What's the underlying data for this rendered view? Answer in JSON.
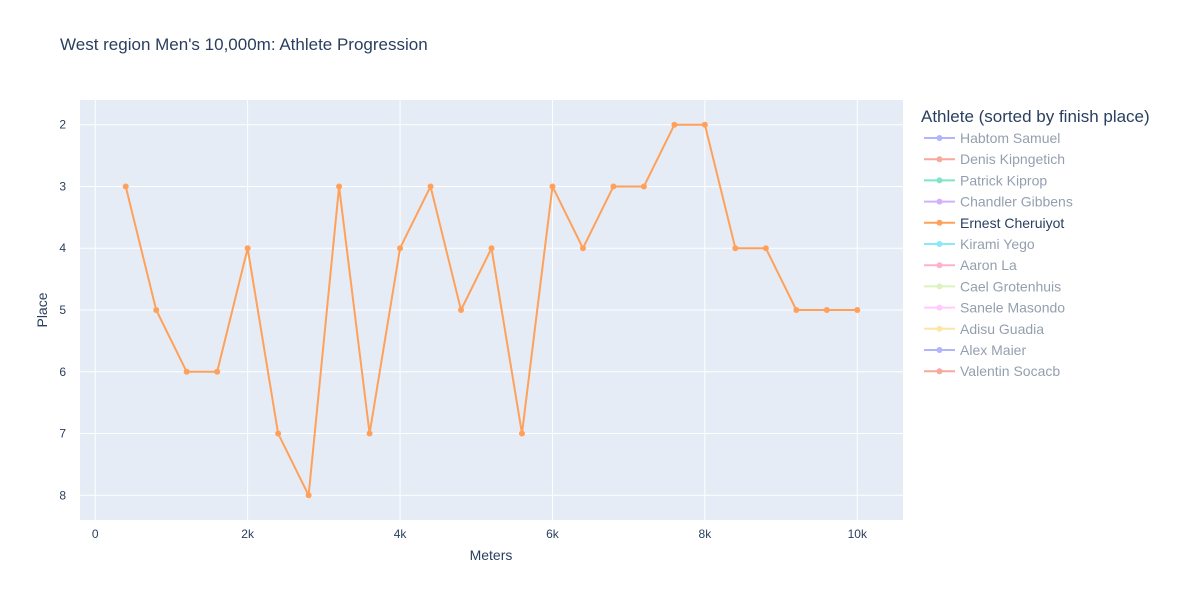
{
  "chart_data": {
    "type": "line",
    "title": "West region Men's 10,000m: Athlete Progression",
    "xlabel": "Meters",
    "ylabel": "Place",
    "xlim": [
      -200,
      10600
    ],
    "ylim": [
      8.4,
      1.6
    ],
    "y_reversed": true,
    "x_ticks": [
      0,
      2000,
      4000,
      6000,
      8000,
      10000
    ],
    "x_tick_labels": [
      "0",
      "2k",
      "4k",
      "6k",
      "8k",
      "10k"
    ],
    "y_ticks": [
      2,
      3,
      4,
      5,
      6,
      7,
      8
    ],
    "y_tick_labels": [
      "2",
      "3",
      "4",
      "5",
      "6",
      "7",
      "8"
    ],
    "grid": true,
    "legend_title": "Athlete (sorted by finish place)",
    "legend_placement": "right",
    "plot_bg": "#e5ecf6",
    "series": [
      {
        "name": "Habtom Samuel",
        "color": "#636efa",
        "visible": false
      },
      {
        "name": "Denis Kipngetich",
        "color": "#ef553b",
        "visible": false
      },
      {
        "name": "Patrick Kiprop",
        "color": "#00cc96",
        "visible": false
      },
      {
        "name": "Chandler Gibbens",
        "color": "#ab63fa",
        "visible": false
      },
      {
        "name": "Ernest Cheruiyot",
        "color": "#ffa15a",
        "visible": true,
        "x": [
          400,
          800,
          1200,
          1600,
          2000,
          2400,
          2800,
          3200,
          3600,
          4000,
          4400,
          4800,
          5200,
          5600,
          6000,
          6400,
          6800,
          7200,
          7600,
          8000,
          8400,
          8800,
          9200,
          9600,
          10000
        ],
        "y": [
          3,
          5,
          6,
          6,
          4,
          7,
          8,
          3,
          7,
          4,
          3,
          5,
          4,
          7,
          3,
          4,
          3,
          3,
          2,
          2,
          4,
          4,
          5,
          5,
          5
        ]
      },
      {
        "name": "Kirami Yego",
        "color": "#19d3f3",
        "visible": false
      },
      {
        "name": "Aaron La",
        "color": "#ff6692",
        "visible": false
      },
      {
        "name": "Cael Grotenhuis",
        "color": "#b6e880",
        "visible": false
      },
      {
        "name": "Sanele Masondo",
        "color": "#ff97ff",
        "visible": false
      },
      {
        "name": "Adisu Guadia",
        "color": "#fecb52",
        "visible": false
      },
      {
        "name": "Alex Maier",
        "color": "#636efa",
        "visible": false
      },
      {
        "name": "Valentin Socacb",
        "color": "#ef553b",
        "visible": false
      }
    ]
  }
}
